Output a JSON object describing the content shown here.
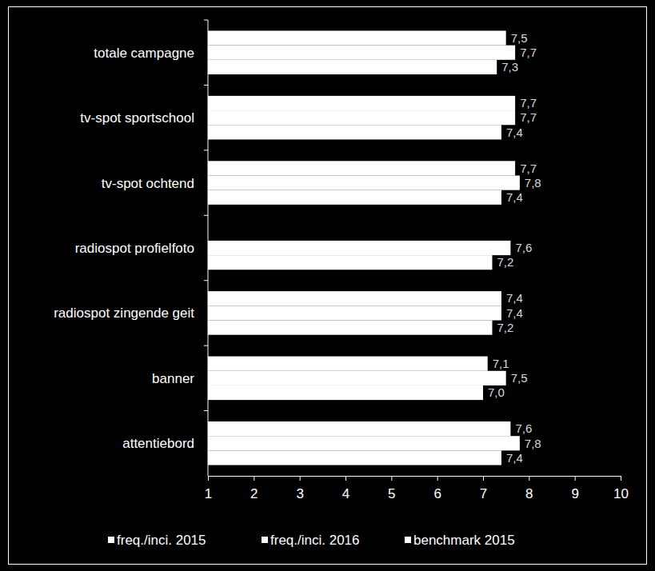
{
  "chart_data": {
    "type": "bar",
    "orientation": "horizontal",
    "categories": [
      "totale campagne",
      "tv-spot sportschool",
      "tv-spot ochtend",
      "radiospot profielfoto",
      "radiospot zingende geit",
      "banner",
      "attentiebord"
    ],
    "series": [
      {
        "name": "freq./inci. 2015",
        "color": "#ffffff",
        "values": [
          7.5,
          7.7,
          7.7,
          null,
          7.4,
          7.1,
          7.6
        ],
        "value_labels": [
          "7,5",
          "7,7",
          "7,7",
          null,
          "7,4",
          "7,1",
          "7,6"
        ]
      },
      {
        "name": "freq./inci. 2016",
        "color": "#ffffff",
        "values": [
          7.7,
          7.7,
          7.8,
          7.6,
          7.4,
          7.5,
          7.8
        ],
        "value_labels": [
          "7,7",
          "7,7",
          "7,8",
          "7,6",
          "7,4",
          "7,5",
          "7,8"
        ]
      },
      {
        "name": "benchmark 2015",
        "color": "#ffffff",
        "values": [
          7.3,
          7.4,
          7.4,
          7.2,
          7.2,
          7.0,
          7.4
        ],
        "value_labels": [
          "7,3",
          "7,4",
          "7,4",
          "7,2",
          "7,2",
          "7,0",
          "7,4"
        ]
      }
    ],
    "xlim": [
      1,
      10
    ],
    "xticks": [
      1,
      2,
      3,
      4,
      5,
      6,
      7,
      8,
      9,
      10
    ],
    "grid": false,
    "legend": "bottom",
    "data_labels": true
  }
}
